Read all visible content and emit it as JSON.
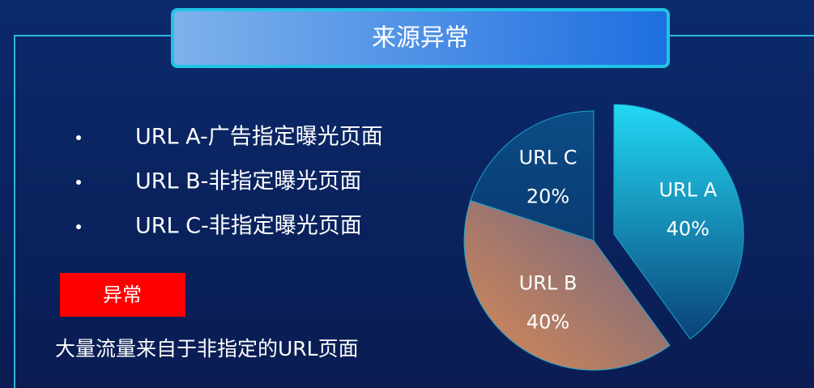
{
  "slide": {
    "title": "来源异常",
    "bullets": [
      "URL A-广告指定曝光页面",
      "URL B-非指定曝光页面",
      "URL C-非指定曝光页面"
    ],
    "tag": "异常",
    "caption": "大量流量来自于非指定的URL页面"
  },
  "chart_data": {
    "type": "pie",
    "categories": [
      "URL A",
      "URL B",
      "URL C"
    ],
    "values": [
      40,
      40,
      20
    ],
    "value_labels": [
      "40%",
      "40%",
      "20%"
    ],
    "colors": [
      "#22d8f4",
      "#d98a55",
      "#0b4c86"
    ]
  }
}
